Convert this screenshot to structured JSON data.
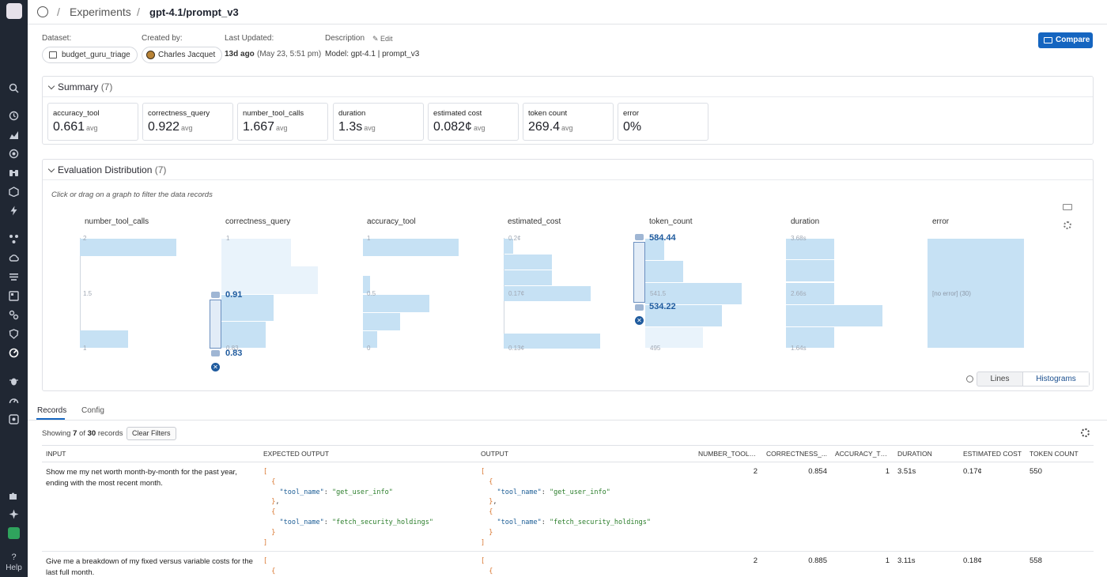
{
  "nav": {
    "help_label": "Help",
    "icons": [
      "search-icon",
      "history-icon",
      "chart-icon",
      "radar-icon",
      "binoculars-icon",
      "cube-icon",
      "bolt-icon",
      "graph-icon",
      "cloud-icon",
      "list-icon",
      "dashboard-icon",
      "link-icon",
      "shield-icon",
      "experiments-icon",
      "bug-icon",
      "gauge-icon",
      "ai-icon",
      "puzzle-icon",
      "sparkle-icon",
      "upload-icon"
    ]
  },
  "breadcrumb": {
    "section": "Experiments",
    "current": "gpt-4.1/prompt_v3",
    "separator": "/"
  },
  "meta": {
    "dataset_label": "Dataset:",
    "dataset_value": "budget_guru_triage",
    "created_label": "Created by:",
    "created_value": "Charles Jacquet",
    "updated_label": "Last Updated:",
    "updated_rel": "13d ago",
    "updated_abs": "(May 23, 5:51 pm)",
    "description_label": "Description",
    "edit_label": "Edit",
    "description_value": "Model: gpt-4.1 | prompt_v3",
    "compare_label": "Compare"
  },
  "summary": {
    "title": "Summary",
    "count": "(7)",
    "metrics": [
      {
        "name": "accuracy_tool",
        "value": "0.661",
        "unit": "avg"
      },
      {
        "name": "correctness_query",
        "value": "0.922",
        "unit": "avg"
      },
      {
        "name": "number_tool_calls",
        "value": "1.667",
        "unit": "avg"
      },
      {
        "name": "duration",
        "value": "1.3s",
        "unit": "avg"
      },
      {
        "name": "estimated cost",
        "value": "0.082¢",
        "unit": "avg"
      },
      {
        "name": "token count",
        "value": "269.4",
        "unit": "avg"
      },
      {
        "name": "error",
        "value": "0%",
        "unit": ""
      }
    ]
  },
  "distribution": {
    "title": "Evaluation Distribution",
    "count": "(7)",
    "hint": "Click or drag on a graph to filter the data records",
    "charts": [
      {
        "name": "number_tool_calls",
        "ticks": [
          "2",
          "1.5",
          "1"
        ]
      },
      {
        "name": "correctness_query",
        "ticks": [
          "1",
          "0.83"
        ],
        "brush_top": "0.91",
        "brush_bottom": "0.83"
      },
      {
        "name": "accuracy_tool",
        "ticks": [
          "1",
          "0.5",
          "0"
        ]
      },
      {
        "name": "estimated_cost",
        "ticks": [
          "0.2¢",
          "0.17¢",
          "0.13¢"
        ]
      },
      {
        "name": "token_count",
        "ticks": [
          "541.5",
          "495"
        ],
        "brush_top": "584.44",
        "brush_bottom": "534.22"
      },
      {
        "name": "duration",
        "ticks": [
          "3.68s",
          "2.66s",
          "1.64s"
        ]
      },
      {
        "name": "error",
        "ticks": [
          "[no error] (30)"
        ]
      }
    ],
    "view_options": [
      "Lines",
      "Histograms"
    ],
    "active_view": "Histograms"
  },
  "records": {
    "tabs": [
      "Records",
      "Config"
    ],
    "active_tab": "Records",
    "showing_prefix": "Showing",
    "showing_count": "7",
    "showing_of": "of",
    "showing_total": "30",
    "showing_suffix": "records",
    "clear_filters": "Clear Filters",
    "columns": [
      "INPUT",
      "EXPECTED OUTPUT",
      "OUTPUT",
      "NUMBER_TOOL_...",
      "CORRECTNESS_...",
      "ACCURACY_TOOL",
      "DURATION",
      "ESTIMATED COST",
      "TOKEN COUNT"
    ],
    "rows": [
      {
        "input": "Show me my net worth month-by-month for the past year, ending with the most recent month.",
        "expected_tools": [
          "get_user_info",
          "fetch_security_holdings"
        ],
        "output_tools": [
          "get_user_info",
          "fetch_security_holdings"
        ],
        "number_tool_calls": "2",
        "correctness_query": "0.854",
        "accuracy_tool": "1",
        "duration": "3.51s",
        "estimated_cost": "0.17¢",
        "token_count": "550"
      },
      {
        "input": "Give me a breakdown of my fixed versus variable costs for the last full month.",
        "expected_tools": [],
        "output_tools": [],
        "number_tool_calls": "2",
        "correctness_query": "0.885",
        "accuracy_tool": "1",
        "duration": "3.11s",
        "estimated_cost": "0.18¢",
        "token_count": "558"
      }
    ],
    "json_key": "\"tool_name\""
  }
}
